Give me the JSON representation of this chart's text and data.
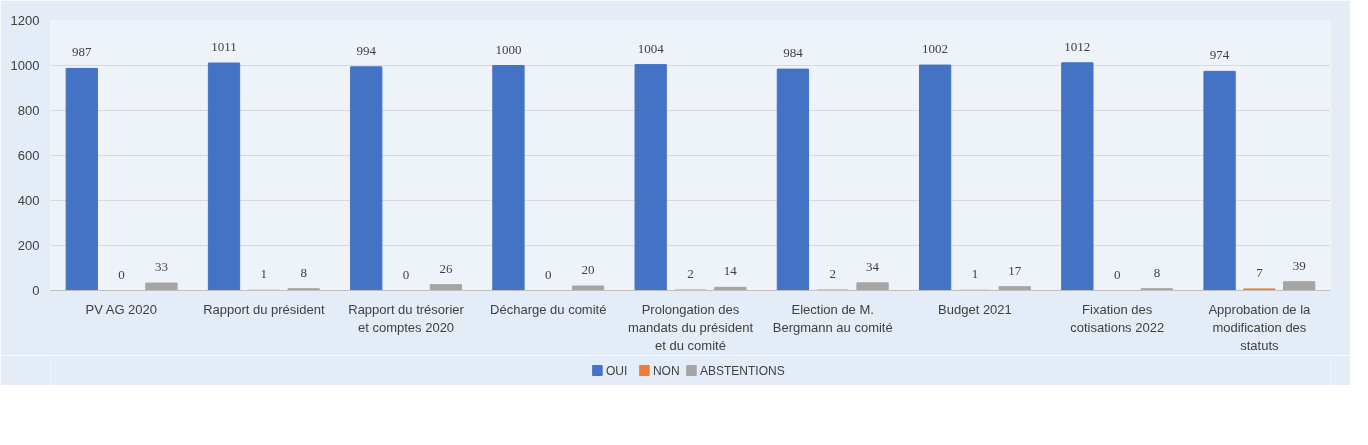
{
  "chart_data": {
    "type": "bar",
    "categories": [
      "PV AG 2020",
      "Rapport du président",
      "Rapport du trésorier et comptes 2020",
      "Décharge du comité",
      "Prolongation des mandats du président et du comité",
      "Election de M. Bergmann au comité",
      "Budget 2021",
      "Fixation des cotisations 2022",
      "Approbation de la modification des statuts"
    ],
    "series": [
      {
        "name": "OUI",
        "color": "#4472c4",
        "values": [
          987,
          1011,
          994,
          1000,
          1004,
          984,
          1002,
          1012,
          974
        ]
      },
      {
        "name": "NON",
        "color": "#ed7d31",
        "values": [
          0,
          1,
          0,
          0,
          2,
          2,
          1,
          0,
          7
        ]
      },
      {
        "name": "ABSTENTIONS",
        "color": "#a5a5a5",
        "values": [
          33,
          8,
          26,
          20,
          14,
          34,
          17,
          8,
          39
        ]
      }
    ],
    "ylim": [
      0,
      1200
    ],
    "yticks": [
      0,
      200,
      400,
      600,
      800,
      1000,
      1200
    ],
    "grid": "y",
    "legend": "bottom",
    "data_labels": true
  }
}
